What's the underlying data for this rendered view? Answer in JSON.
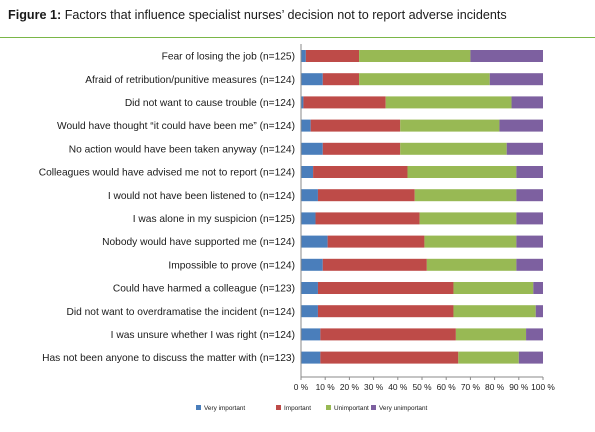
{
  "figure_title": {
    "lead": "Figure 1:",
    "text": "Factors that influence specialist nurses’ decision not to report adverse incidents"
  },
  "chart_data": {
    "type": "bar",
    "orientation": "horizontal",
    "stacked": true,
    "percent": true,
    "categories": [
      "Fear of losing the job (n=125)",
      "Afraid of retribution/punitive measures (n=124)",
      "Did not want to cause trouble (n=124)",
      "Would have thought “it could have been me” (n=124)",
      "No action would have been taken anyway (n=124)",
      "Colleagues would have advised me not to report (n=124)",
      "I would not have been listened to (n=124)",
      "I was alone in my suspicion (n=125)",
      "Nobody would have supported me (n=124)",
      "Impossible to prove (n=124)",
      "Could have harmed a colleague (n=123)",
      "Did not want to overdramatise the incident (n=124)",
      "I was unsure whether I was right (n=124)",
      "Has not been anyone to discuss the matter with (n=123)"
    ],
    "series": [
      {
        "name": "Very important",
        "color": "#4a7ebb",
        "values": [
          2,
          9,
          1,
          4,
          9,
          5,
          7,
          6,
          11,
          9,
          7,
          7,
          8,
          8
        ]
      },
      {
        "name": "Important",
        "color": "#be4b48",
        "values": [
          22,
          15,
          34,
          37,
          32,
          39,
          40,
          43,
          40,
          43,
          56,
          56,
          56,
          57
        ]
      },
      {
        "name": "Unimportant",
        "color": "#98b954",
        "values": [
          46,
          54,
          52,
          41,
          44,
          45,
          42,
          40,
          38,
          37,
          33,
          34,
          29,
          25
        ]
      },
      {
        "name": "Very unimportant",
        "color": "#7d60a0",
        "values": [
          30,
          22,
          13,
          18,
          15,
          11,
          11,
          11,
          11,
          11,
          4,
          3,
          7,
          10
        ]
      }
    ],
    "xlim": [
      0,
      100
    ],
    "x_ticks": [
      "0 %",
      "10 %",
      "20 %",
      "30 %",
      "40 %",
      "50 %",
      "60 %",
      "70 %",
      "80 %",
      "90 %",
      "100 %"
    ],
    "legend_position": "bottom",
    "grid": false
  }
}
